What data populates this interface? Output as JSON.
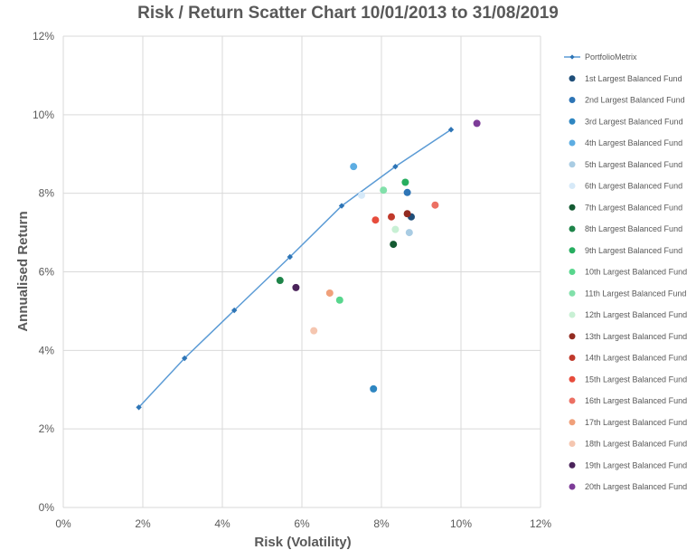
{
  "chart_data": {
    "type": "scatter",
    "title": "Risk / Return Scatter Chart 10/01/2013 to 31/08/2019",
    "xlabel": "Risk (Volatility)",
    "ylabel": "Annualised Return",
    "xlim": [
      0,
      12
    ],
    "ylim": [
      0,
      12
    ],
    "x_ticks": [
      "0%",
      "2%",
      "4%",
      "6%",
      "8%",
      "10%",
      "12%"
    ],
    "y_ticks": [
      "0%",
      "2%",
      "4%",
      "6%",
      "8%",
      "10%",
      "12%"
    ],
    "grid": true,
    "legend_position": "right",
    "series": [
      {
        "name": "PortfolioMetrix",
        "kind": "line",
        "color": "#5b9bd5",
        "points": [
          [
            1.9,
            2.55
          ],
          [
            3.05,
            3.8
          ],
          [
            4.3,
            5.02
          ],
          [
            5.7,
            6.38
          ],
          [
            7.0,
            7.68
          ],
          [
            8.35,
            8.68
          ],
          [
            9.75,
            9.62
          ]
        ]
      },
      {
        "name": "1st Largest Balanced Fund",
        "color": "#1f4e79",
        "points": [
          [
            8.75,
            7.4
          ]
        ]
      },
      {
        "name": "2nd Largest Balanced Fund",
        "color": "#2e75b6",
        "points": [
          [
            8.65,
            8.02
          ]
        ]
      },
      {
        "name": "3rd Largest Balanced Fund",
        "color": "#2e86c1",
        "points": [
          [
            7.8,
            3.02
          ]
        ]
      },
      {
        "name": "4th Largest Balanced Fund",
        "color": "#5dade2",
        "points": [
          [
            7.3,
            8.68
          ]
        ]
      },
      {
        "name": "5th Largest Balanced Fund",
        "color": "#a9cce3",
        "points": [
          [
            8.7,
            7.0
          ]
        ]
      },
      {
        "name": "6th Largest Balanced Fund",
        "color": "#d6e9f8",
        "points": [
          [
            7.5,
            7.95
          ]
        ]
      },
      {
        "name": "7th Largest Balanced Fund",
        "color": "#145a32",
        "points": [
          [
            8.3,
            6.7
          ]
        ]
      },
      {
        "name": "8th Largest Balanced Fund",
        "color": "#1e8449",
        "points": [
          [
            5.45,
            5.78
          ]
        ]
      },
      {
        "name": "9th Largest Balanced Fund",
        "color": "#27ae60",
        "points": [
          [
            8.6,
            8.28
          ]
        ]
      },
      {
        "name": "10th Largest Balanced Fund",
        "color": "#58d68d",
        "points": [
          [
            6.95,
            5.28
          ]
        ]
      },
      {
        "name": "11th Largest Balanced Fund",
        "color": "#82e0aa",
        "points": [
          [
            8.05,
            8.08
          ]
        ]
      },
      {
        "name": "12th Largest Balanced Fund",
        "color": "#c8f0d4",
        "points": [
          [
            8.35,
            7.08
          ]
        ]
      },
      {
        "name": "13th Largest Balanced Fund",
        "color": "#922b21",
        "points": [
          [
            8.65,
            7.48
          ]
        ]
      },
      {
        "name": "14th Largest Balanced Fund",
        "color": "#c0392b",
        "points": [
          [
            8.25,
            7.4
          ]
        ]
      },
      {
        "name": "15th Largest Balanced Fund",
        "color": "#e74c3c",
        "points": [
          [
            7.85,
            7.32
          ]
        ]
      },
      {
        "name": "16th Largest Balanced Fund",
        "color": "#ec7063",
        "points": [
          [
            9.35,
            7.7
          ]
        ]
      },
      {
        "name": "17th Largest Balanced Fund",
        "color": "#f0a07a",
        "points": [
          [
            6.7,
            5.46
          ]
        ]
      },
      {
        "name": "18th Largest Balanced Fund",
        "color": "#f5c6b0",
        "points": [
          [
            6.3,
            4.5
          ]
        ]
      },
      {
        "name": "19th Largest Balanced Fund",
        "color": "#4a235a",
        "points": [
          [
            5.85,
            5.6
          ]
        ]
      },
      {
        "name": "20th Largest Balanced Fund",
        "color": "#7d3c98",
        "points": [
          [
            10.4,
            9.78
          ]
        ]
      }
    ]
  }
}
